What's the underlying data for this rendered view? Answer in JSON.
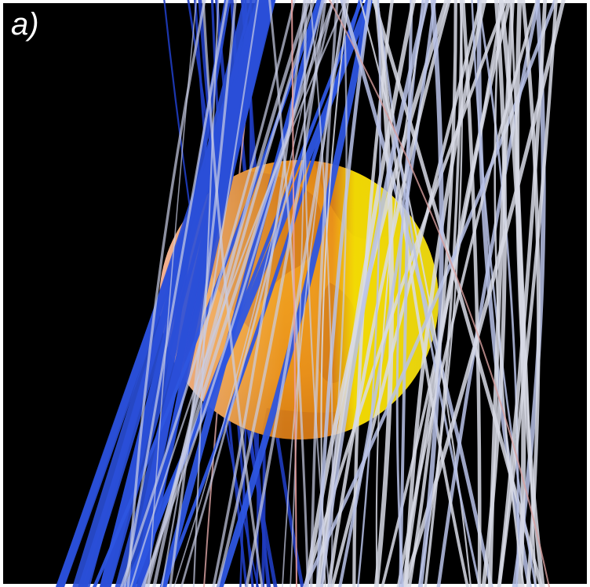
{
  "panel_label": "a)"
}
